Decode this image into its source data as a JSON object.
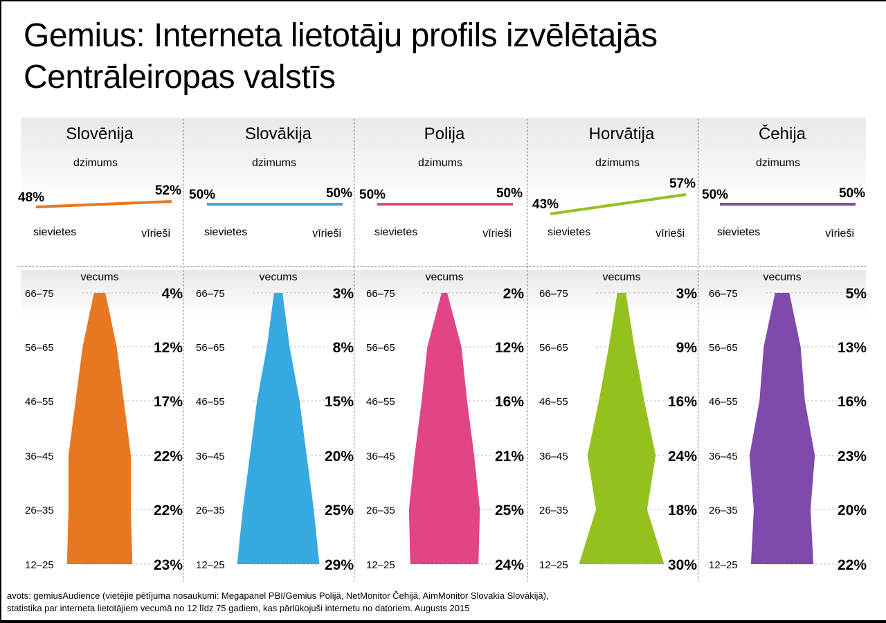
{
  "title": {
    "line1": "Gemius: Interneta lietotāju profils izvēlētajās",
    "line2": "Centrāleiropas valstīs"
  },
  "labels": {
    "gender_heading": "dzimums",
    "female": "sievietes",
    "male": "vīrieši",
    "age_heading": "vecums"
  },
  "source": {
    "line1": "avots: gemiusAudience (vietējie pētījuma nosaukumi: Megapanel PBI/Gemius Polijā, NetMonitor Čehijā, AimMonitor Slovakia Slovākijā),",
    "line2": "statistika par interneta lietotājiem vecumā no 12 līdz 75 gadiem, kas pārlūkojuši internetu no datoriem. Augusts 2015"
  },
  "chart_data": {
    "type": "area",
    "age_groups": [
      "66–75",
      "56–65",
      "46–55",
      "36–45",
      "26–35",
      "12–25"
    ],
    "countries": [
      {
        "name": "Slovēnija",
        "color": "#e87722",
        "female": "48%",
        "male": "52%",
        "female_value": 48,
        "male_value": 52,
        "age_labels": [
          "4%",
          "12%",
          "17%",
          "22%",
          "22%",
          "23%"
        ],
        "age_values": [
          4,
          12,
          17,
          22,
          22,
          23
        ]
      },
      {
        "name": "Slovākija",
        "color": "#36a9e1",
        "female": "50%",
        "male": "50%",
        "female_value": 50,
        "male_value": 50,
        "age_labels": [
          "3%",
          "8%",
          "15%",
          "20%",
          "25%",
          "29%"
        ],
        "age_values": [
          3,
          8,
          15,
          20,
          25,
          29
        ]
      },
      {
        "name": "Polija",
        "color": "#e24585",
        "female": "50%",
        "male": "50%",
        "female_value": 50,
        "male_value": 50,
        "age_labels": [
          "2%",
          "12%",
          "16%",
          "21%",
          "25%",
          "24%"
        ],
        "age_values": [
          2,
          12,
          16,
          21,
          25,
          24
        ]
      },
      {
        "name": "Horvātija",
        "color": "#95c11f",
        "female": "43%",
        "male": "57%",
        "female_value": 43,
        "male_value": 57,
        "age_labels": [
          "3%",
          "9%",
          "16%",
          "24%",
          "18%",
          "30%"
        ],
        "age_values": [
          3,
          9,
          16,
          24,
          18,
          30
        ]
      },
      {
        "name": "Čehija",
        "color": "#7f4aab",
        "female": "50%",
        "male": "50%",
        "female_value": 50,
        "male_value": 50,
        "age_labels": [
          "5%",
          "13%",
          "16%",
          "23%",
          "20%",
          "22%"
        ],
        "age_values": [
          5,
          13,
          16,
          23,
          20,
          22
        ]
      }
    ]
  }
}
